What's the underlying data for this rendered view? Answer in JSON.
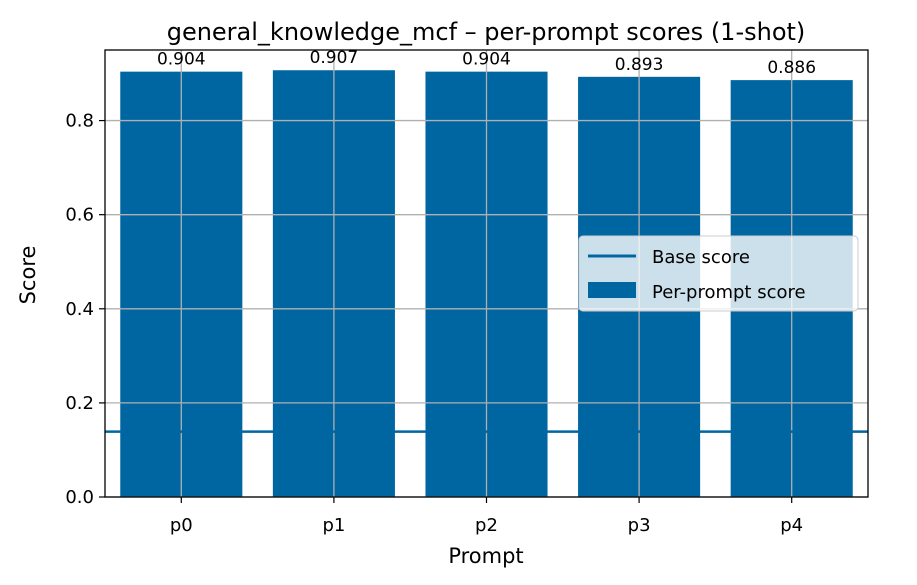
{
  "chart_data": {
    "type": "bar",
    "title": "general_knowledge_mcf – per-prompt scores (1-shot)",
    "xlabel": "Prompt",
    "ylabel": "Score",
    "categories": [
      "p0",
      "p1",
      "p2",
      "p3",
      "p4"
    ],
    "series": [
      {
        "name": "Per-prompt score",
        "values": [
          0.904,
          0.907,
          0.904,
          0.893,
          0.886
        ]
      }
    ],
    "data_labels": [
      "0.904",
      "0.907",
      "0.904",
      "0.893",
      "0.886"
    ],
    "base_score": 0.139,
    "base_score_label": "Base score",
    "ylim": [
      0,
      0.95
    ],
    "yticks": [
      0.0,
      0.2,
      0.4,
      0.6,
      0.8
    ],
    "ytick_labels": [
      "0.0",
      "0.2",
      "0.4",
      "0.6",
      "0.8"
    ],
    "grid": true,
    "legend_position": "center-right",
    "colors": {
      "bar": "#0066a2",
      "base_line": "#0066a2",
      "grid": "#b0b0b0"
    }
  }
}
